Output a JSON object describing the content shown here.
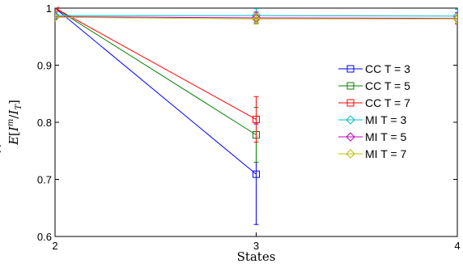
{
  "chart_data": {
    "type": "line",
    "xlabel": "States",
    "ylabel": "Ê[I^m / I_T]",
    "ylabel_parts": {
      "base": "E",
      "hat": "^",
      "open": "[",
      "num": "I",
      "sup": "m",
      "slash": "/",
      "den": "I",
      "sub": "T",
      "close": "]"
    },
    "xlim": [
      2,
      4
    ],
    "ylim": [
      0.6,
      1.0
    ],
    "x_ticks": [
      "2",
      "3",
      "4"
    ],
    "y_ticks": [
      "0.6",
      "0.7",
      "0.8",
      "0.9",
      "1"
    ],
    "grid": false,
    "legend_position": "right",
    "series": [
      {
        "name": "CC T = 3",
        "color": "#0000ff",
        "marker": "square",
        "x": [
          2,
          3
        ],
        "y": [
          1.0,
          0.709
        ],
        "err": [
          0.0,
          0.088
        ]
      },
      {
        "name": "CC T = 5",
        "color": "#008000",
        "marker": "square",
        "x": [
          2,
          3
        ],
        "y": [
          1.0,
          0.778
        ],
        "err": [
          0.0,
          0.048
        ]
      },
      {
        "name": "CC T = 7",
        "color": "#ff0000",
        "marker": "square",
        "x": [
          2,
          3
        ],
        "y": [
          1.0,
          0.805
        ],
        "err": [
          0.0,
          0.04
        ]
      },
      {
        "name": "MI T = 3",
        "color": "#00bfbf",
        "marker": "diamond",
        "x": [
          2,
          3,
          4
        ],
        "y": [
          0.987,
          0.987,
          0.986
        ],
        "err": [
          0.005,
          0.012,
          0.012
        ]
      },
      {
        "name": "MI T = 5",
        "color": "#bf00bf",
        "marker": "diamond",
        "x": [
          2,
          3,
          4
        ],
        "y": [
          0.985,
          0.983,
          0.982
        ],
        "err": [
          0.005,
          0.01,
          0.01
        ]
      },
      {
        "name": "MI T = 7",
        "color": "#bfbf00",
        "marker": "diamond",
        "x": [
          2,
          3,
          4
        ],
        "y": [
          0.984,
          0.981,
          0.981
        ],
        "err": [
          0.005,
          0.009,
          0.008
        ]
      }
    ]
  }
}
